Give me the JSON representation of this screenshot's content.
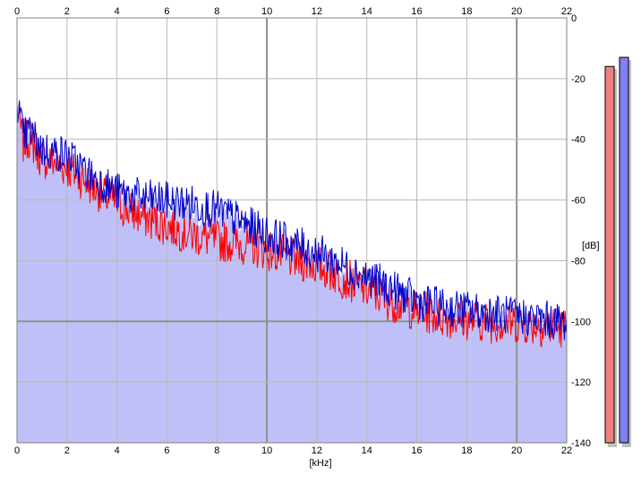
{
  "chart_data": {
    "type": "area",
    "title": "",
    "xlabel": "[kHz]",
    "ylabel": "[dB]",
    "xlim": [
      0,
      22
    ],
    "ylim": [
      -140,
      0
    ],
    "grid": true,
    "x_ticks": [
      "0",
      "2",
      "4",
      "6",
      "8",
      "10",
      "12",
      "14",
      "16",
      "18",
      "20",
      "22"
    ],
    "y_ticks": [
      "0",
      "-20",
      "-40",
      "-60",
      "-80",
      "-100",
      "-120",
      "-140"
    ],
    "series": [
      {
        "color": "#ff0000",
        "x": [
          0,
          0.25,
          0.5,
          1,
          1.5,
          2,
          3,
          4,
          5,
          6,
          7,
          8,
          9,
          10,
          11,
          12,
          13,
          14,
          15,
          16,
          17,
          18,
          19,
          20,
          21,
          22
        ],
        "values": [
          -28,
          -40,
          -38,
          -45,
          -46,
          -48,
          -54,
          -60,
          -64,
          -67,
          -70,
          -72,
          -73,
          -75,
          -78,
          -80,
          -84,
          -88,
          -92,
          -95,
          -97,
          -98,
          -99,
          -99,
          -100,
          -101
        ]
      },
      {
        "color": "#0000cc",
        "x": [
          0,
          0.25,
          0.5,
          1,
          1.5,
          2,
          3,
          4,
          5,
          6,
          7,
          8,
          9,
          10,
          11,
          12,
          13,
          14,
          15,
          16,
          17,
          18,
          19,
          20,
          21,
          22
        ],
        "values": [
          -26,
          -38,
          -36,
          -42,
          -43,
          -44,
          -51,
          -56,
          -58,
          -59,
          -60,
          -62,
          -66,
          -70,
          -73,
          -76,
          -80,
          -84,
          -88,
          -92,
          -94,
          -95,
          -96,
          -97,
          -98,
          -99
        ]
      }
    ],
    "fill_color": "#c0c0f8",
    "level_meters": [
      {
        "channel": "left",
        "color": "#f08080",
        "value_db": -16
      },
      {
        "channel": "right",
        "color": "#8080f0",
        "value_db": -13
      }
    ]
  }
}
